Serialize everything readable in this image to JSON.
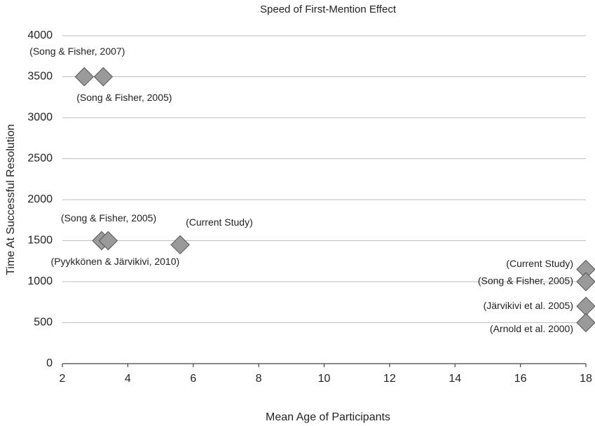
{
  "chart_data": {
    "type": "scatter",
    "title": "Speed of First-Mention Effect",
    "x_label": "Mean Age of Participants",
    "y_label": "Time At Successful Resolution",
    "xlim": [
      2,
      18
    ],
    "xticks": [
      2,
      4,
      6,
      8,
      10,
      12,
      14,
      16,
      18
    ],
    "ylim": [
      0,
      4000
    ],
    "yticks": [
      0,
      500,
      1000,
      1500,
      2000,
      2500,
      3000,
      3500,
      4000
    ],
    "grid": true,
    "color": "#9a9a9a",
    "x": [
      2.67,
      3.25,
      3.2,
      3.4,
      5.6,
      18,
      18,
      18,
      18
    ],
    "values": [
      3500,
      3500,
      1500,
      1500,
      1450,
      1150,
      1000,
      700,
      500
    ],
    "labels": [
      "(Song & Fisher, 2007)",
      "(Song & Fisher, 2005)",
      "(Song & Fisher, 2005)",
      "(Pyykkönen & Järvikivi, 2010)",
      "(Current Study)",
      "(Current Study)",
      "(Song & Fisher, 2005)",
      "(Järvikivi et al. 2005)",
      "(Arnold et al. 2000)"
    ]
  }
}
